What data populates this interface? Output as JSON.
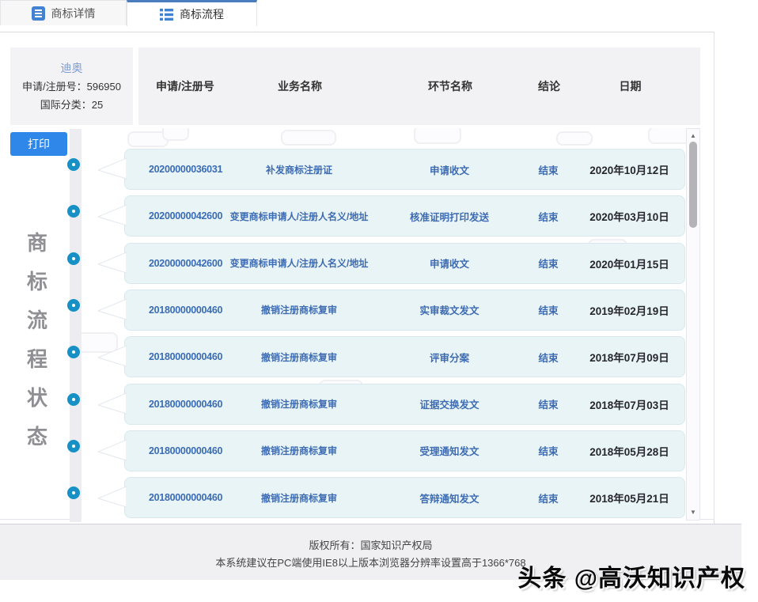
{
  "tabs": [
    {
      "label": "商标详情"
    },
    {
      "label": "商标流程"
    }
  ],
  "info": {
    "name": "迪奥",
    "reg_line": "申请/注册号：596950",
    "class_line": "国际分类：25"
  },
  "print_label": "打印",
  "side_label": {
    "chars": [
      "商",
      "标",
      "流",
      "程",
      "状",
      "态"
    ]
  },
  "table": {
    "headers": [
      "申请/注册号",
      "业务名称",
      "环节名称",
      "结论",
      "日期"
    ],
    "rows": [
      {
        "no": "20200000036031",
        "business": "补发商标注册证",
        "stage": "申请收文",
        "conclusion": "结束",
        "date": "2020年10月12日"
      },
      {
        "no": "20200000042600",
        "business": "变更商标申请人/注册人名义/地址",
        "stage": "核准证明打印发送",
        "conclusion": "结束",
        "date": "2020年03月10日"
      },
      {
        "no": "20200000042600",
        "business": "变更商标申请人/注册人名义/地址",
        "stage": "申请收文",
        "conclusion": "结束",
        "date": "2020年01月15日"
      },
      {
        "no": "20180000000460",
        "business": "撤销注册商标复审",
        "stage": "实审裁文发文",
        "conclusion": "结束",
        "date": "2019年02月19日"
      },
      {
        "no": "20180000000460",
        "business": "撤销注册商标复审",
        "stage": "评审分案",
        "conclusion": "结束",
        "date": "2018年07月09日"
      },
      {
        "no": "20180000000460",
        "business": "撤销注册商标复审",
        "stage": "证据交换发文",
        "conclusion": "结束",
        "date": "2018年07月03日"
      },
      {
        "no": "20180000000460",
        "business": "撤销注册商标复审",
        "stage": "受理通知发文",
        "conclusion": "结束",
        "date": "2018年05月28日"
      },
      {
        "no": "20180000000460",
        "business": "撤销注册商标复审",
        "stage": "答辩通知发文",
        "conclusion": "结束",
        "date": "2018年05月21日"
      }
    ]
  },
  "footer": {
    "line1": "版权所有：国家知识产权局",
    "line2": "本系统建议在PC端使用IE8以上版本浏览器分辨率设置高于1366*768"
  },
  "watermark": {
    "text": "头条 @高沃知识产权"
  },
  "colors": {
    "active_tab_border": "#4a7cbd",
    "tab_icon_blue": "#4282d2",
    "link_blue": "#7c9cd6",
    "row_text_blue": "#3e6cb3",
    "circle_blue": "#1791c5",
    "print_button_blue": "#2e87e9",
    "row_card_bg": "#e9f4f6",
    "header_band_bg": "#f2f2f4",
    "footer_bg": "#f0f0f3"
  }
}
